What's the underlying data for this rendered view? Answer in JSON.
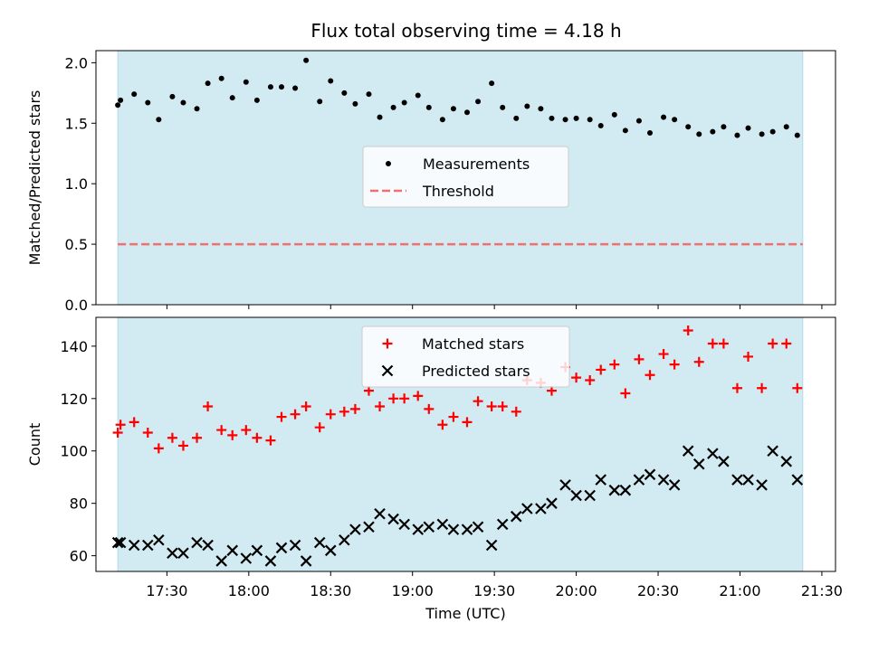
{
  "title": "Flux total observing time = 4.18 h",
  "chart_data": [
    {
      "type": "scatter",
      "ylabel": "Matched/Predicted stars",
      "ylim": [
        0,
        2.1
      ],
      "yticks": [
        0.0,
        0.5,
        1.0,
        1.5,
        2.0
      ],
      "ytick_labels": [
        "0.0",
        "0.5",
        "1.0",
        "1.5",
        "2.0"
      ],
      "shaded_span": [
        "17:12",
        "21:23"
      ],
      "shade_color": "#add8e6",
      "legend_placement": "center",
      "series": [
        {
          "name": "Measurements",
          "marker": "dot",
          "color": "#000000",
          "x": [
            "17:12",
            "17:13",
            "17:18",
            "17:23",
            "17:27",
            "17:32",
            "17:36",
            "17:41",
            "17:45",
            "17:50",
            "17:54",
            "17:59",
            "18:03",
            "18:08",
            "18:12",
            "18:17",
            "18:21",
            "18:26",
            "18:30",
            "18:35",
            "18:39",
            "18:44",
            "18:48",
            "18:53",
            "18:57",
            "19:02",
            "19:06",
            "19:11",
            "19:15",
            "19:20",
            "19:24",
            "19:29",
            "19:33",
            "19:38",
            "19:42",
            "19:47",
            "19:51",
            "19:56",
            "20:00",
            "20:05",
            "20:09",
            "20:14",
            "20:18",
            "20:23",
            "20:27",
            "20:32",
            "20:36",
            "20:41",
            "20:45",
            "20:50",
            "20:54",
            "20:59",
            "21:03",
            "21:08",
            "21:12",
            "21:17",
            "21:21"
          ],
          "y": [
            1.65,
            1.69,
            1.74,
            1.67,
            1.53,
            1.72,
            1.67,
            1.62,
            1.83,
            1.87,
            1.71,
            1.84,
            1.69,
            1.8,
            1.8,
            1.79,
            2.02,
            1.68,
            1.85,
            1.75,
            1.66,
            1.74,
            1.55,
            1.63,
            1.67,
            1.73,
            1.63,
            1.53,
            1.62,
            1.59,
            1.68,
            1.83,
            1.63,
            1.54,
            1.64,
            1.62,
            1.54,
            1.53,
            1.54,
            1.53,
            1.48,
            1.57,
            1.44,
            1.52,
            1.42,
            1.55,
            1.53,
            1.47,
            1.41,
            1.43,
            1.47,
            1.4,
            1.46,
            1.41,
            1.43,
            1.47,
            1.4
          ]
        },
        {
          "name": "Threshold",
          "marker": "dashed-line",
          "color": "#f07070",
          "x": [
            "17:12",
            "21:23"
          ],
          "y": [
            0.5,
            0.5
          ]
        }
      ]
    },
    {
      "type": "scatter",
      "xlabel": "Time (UTC)",
      "ylabel": "Count",
      "ylim": [
        54,
        151
      ],
      "yticks": [
        60,
        80,
        100,
        120,
        140
      ],
      "ytick_labels": [
        "60",
        "80",
        "100",
        "120",
        "140"
      ],
      "xticks": [
        "17:30",
        "18:00",
        "18:30",
        "19:00",
        "19:30",
        "20:00",
        "20:30",
        "21:00",
        "21:30"
      ],
      "xlim": [
        "17:04",
        "21:35"
      ],
      "shaded_span": [
        "17:12",
        "21:23"
      ],
      "shade_color": "#add8e6",
      "legend_placement": "upper center",
      "series": [
        {
          "name": "Matched stars",
          "marker": "plus",
          "color": "#ff0000",
          "x": [
            "17:12",
            "17:13",
            "17:18",
            "17:23",
            "17:27",
            "17:32",
            "17:36",
            "17:41",
            "17:45",
            "17:50",
            "17:54",
            "17:59",
            "18:03",
            "18:08",
            "18:12",
            "18:17",
            "18:21",
            "18:26",
            "18:30",
            "18:35",
            "18:39",
            "18:44",
            "18:48",
            "18:53",
            "18:57",
            "19:02",
            "19:06",
            "19:11",
            "19:15",
            "19:20",
            "19:24",
            "19:29",
            "19:33",
            "19:38",
            "19:42",
            "19:47",
            "19:51",
            "19:56",
            "20:00",
            "20:05",
            "20:09",
            "20:14",
            "20:18",
            "20:23",
            "20:27",
            "20:32",
            "20:36",
            "20:41",
            "20:45",
            "20:50",
            "20:54",
            "20:59",
            "21:03",
            "21:08",
            "21:12",
            "21:17",
            "21:21"
          ],
          "y": [
            107,
            110,
            111,
            107,
            101,
            105,
            102,
            105,
            117,
            108,
            106,
            108,
            105,
            104,
            113,
            114,
            117,
            109,
            114,
            115,
            116,
            123,
            117,
            120,
            120,
            121,
            116,
            110,
            113,
            111,
            119,
            117,
            117,
            115,
            127,
            126,
            123,
            132,
            128,
            127,
            131,
            133,
            122,
            135,
            129,
            137,
            133,
            146,
            134,
            141,
            141,
            124,
            136,
            124,
            141,
            141,
            124
          ]
        },
        {
          "name": "Predicted stars",
          "marker": "x",
          "color": "#000000",
          "x": [
            "17:12",
            "17:13",
            "17:18",
            "17:23",
            "17:27",
            "17:32",
            "17:36",
            "17:41",
            "17:45",
            "17:50",
            "17:54",
            "17:59",
            "18:03",
            "18:08",
            "18:12",
            "18:17",
            "18:21",
            "18:26",
            "18:30",
            "18:35",
            "18:39",
            "18:44",
            "18:48",
            "18:53",
            "18:57",
            "19:02",
            "19:06",
            "19:11",
            "19:15",
            "19:20",
            "19:24",
            "19:29",
            "19:33",
            "19:38",
            "19:42",
            "19:47",
            "19:51",
            "19:56",
            "20:00",
            "20:05",
            "20:09",
            "20:14",
            "20:18",
            "20:23",
            "20:27",
            "20:32",
            "20:36",
            "20:41",
            "20:45",
            "20:50",
            "20:54",
            "20:59",
            "21:03",
            "21:08",
            "21:12",
            "21:17",
            "21:21"
          ],
          "y": [
            65,
            65,
            64,
            64,
            66,
            61,
            61,
            65,
            64,
            58,
            62,
            59,
            62,
            58,
            63,
            64,
            58,
            65,
            62,
            66,
            70,
            71,
            76,
            74,
            72,
            70,
            71,
            72,
            70,
            70,
            71,
            64,
            72,
            75,
            78,
            78,
            80,
            87,
            83,
            83,
            89,
            85,
            85,
            89,
            91,
            89,
            87,
            100,
            95,
            99,
            96,
            89,
            89,
            87,
            100,
            96,
            89
          ]
        }
      ]
    }
  ]
}
